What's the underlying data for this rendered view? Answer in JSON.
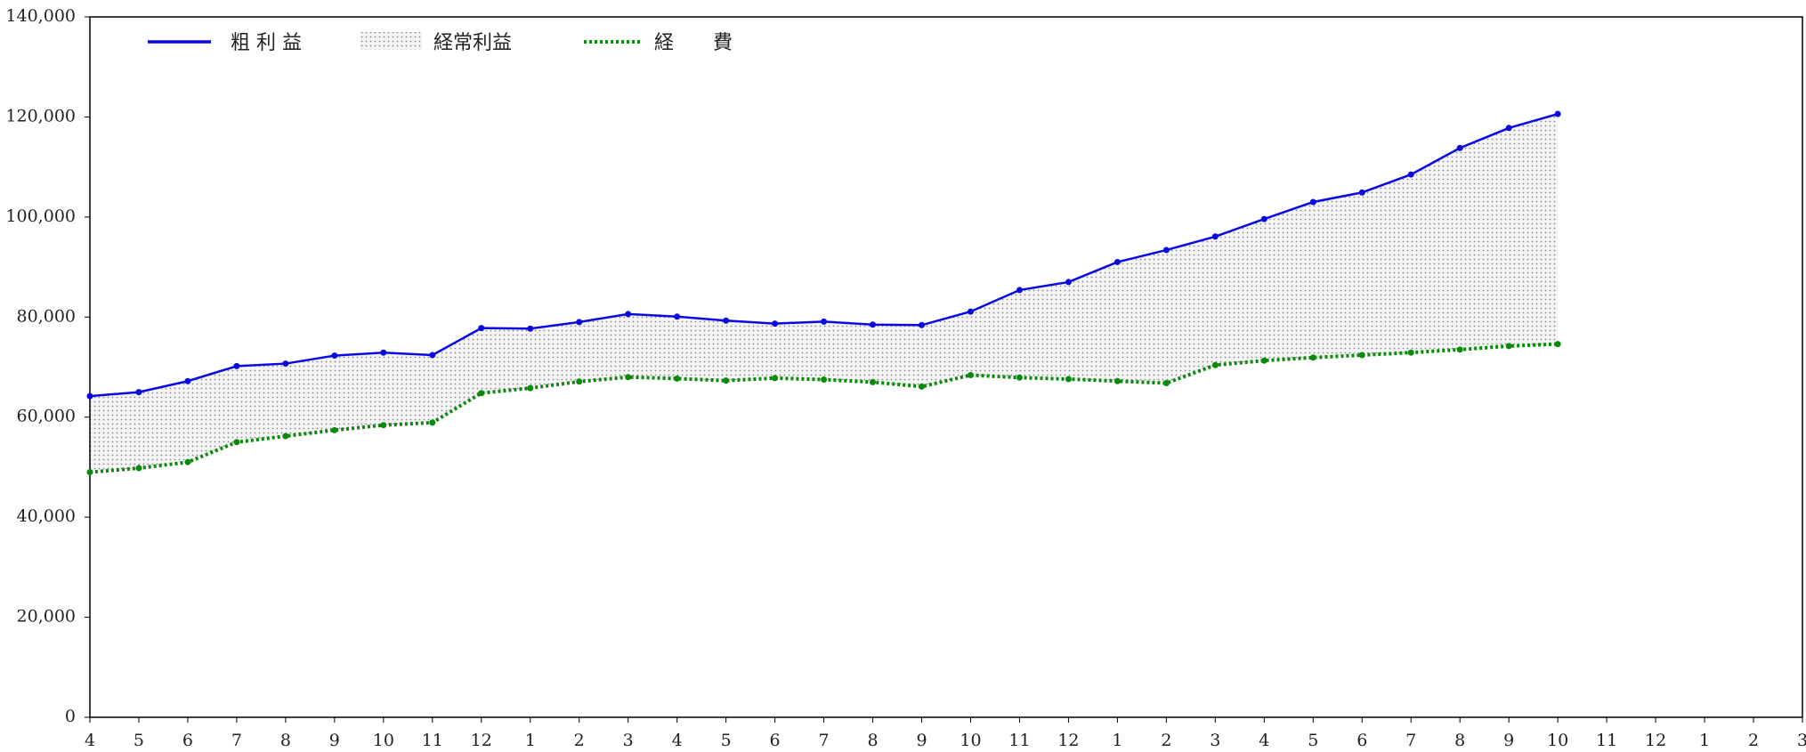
{
  "chart_data": {
    "type": "line",
    "categories": [
      "4",
      "5",
      "6",
      "7",
      "8",
      "9",
      "10",
      "11",
      "12",
      "1",
      "2",
      "3",
      "4",
      "5",
      "6",
      "7",
      "8",
      "9",
      "10",
      "11",
      "12",
      "1",
      "2",
      "3",
      "4",
      "5",
      "6",
      "7",
      "8",
      "9",
      "10",
      "11",
      "12",
      "1",
      "2",
      "3"
    ],
    "series": [
      {
        "name": "粗 利 益",
        "color": "#0a0ae0",
        "style": "solid",
        "values": [
          64200,
          65000,
          67200,
          70200,
          70700,
          72300,
          72900,
          72400,
          77800,
          77700,
          79000,
          80600,
          80100,
          79300,
          78700,
          79100,
          78500,
          78400,
          81100,
          85400,
          87000,
          91000,
          93400,
          96100,
          99600,
          103000,
          104900,
          108500,
          113800,
          117800,
          120600,
          null,
          null,
          null,
          null,
          null
        ]
      },
      {
        "name": "経常利益",
        "color": "#999999",
        "style": "dots-between"
      },
      {
        "name": "経　　費",
        "color": "#0a8a0a",
        "style": "dotted",
        "values": [
          49000,
          49800,
          51000,
          55000,
          56200,
          57400,
          58400,
          58900,
          64800,
          65800,
          67100,
          68000,
          67700,
          67300,
          67800,
          67500,
          67000,
          66100,
          68400,
          67900,
          67600,
          67200,
          66800,
          70400,
          71300,
          71900,
          72400,
          72900,
          73500,
          74200,
          74600,
          null,
          null,
          null,
          null,
          null
        ]
      }
    ],
    "ylim": [
      0,
      140000
    ],
    "yticks": [
      0,
      {
        "value": 20000,
        "label": "20,000"
      },
      {
        "value": 40000,
        "label": "40,000"
      },
      {
        "value": 60000,
        "label": "60,000"
      },
      {
        "value": 80000,
        "label": "80,000"
      },
      {
        "value": 100000,
        "label": "100,000"
      },
      {
        "value": 120000,
        "label": "120,000"
      },
      {
        "value": 140000,
        "label": "140,000"
      }
    ],
    "legend": "top-left"
  }
}
